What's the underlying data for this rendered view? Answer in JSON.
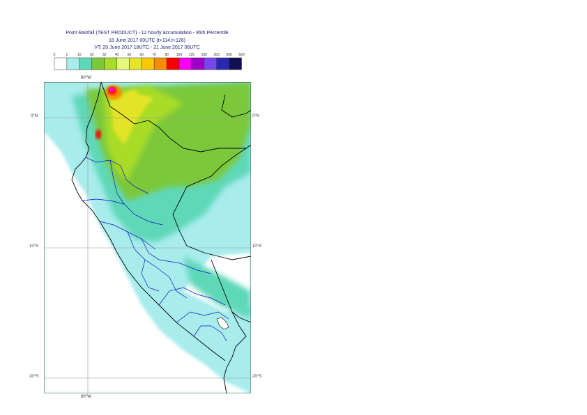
{
  "header": {
    "line1": "Point Rainfall (TEST PRODUCT) - 12 hourly accumulation - 95th Percentile",
    "line2": "16 June 2017 00UTC (t+114,t+126)",
    "line3": "VT: 20 June 2017 18UTC - 21 June 2017 06UTC"
  },
  "legend": {
    "thresholds": [
      "0",
      "1",
      "10",
      "20",
      "30",
      "40",
      "50",
      "60",
      "70",
      "80",
      "100",
      "125",
      "150",
      "200",
      "300",
      "500"
    ],
    "colors": [
      "#ffffff",
      "#a8ecec",
      "#5ed8b8",
      "#7cc83a",
      "#a8dc28",
      "#e4f87a",
      "#e4e428",
      "#f8c800",
      "#f88c00",
      "#f80000",
      "#f800f8",
      "#a000c8",
      "#7846f0",
      "#2828b4",
      "#101050"
    ]
  },
  "map": {
    "lat_labels": [
      "0°N",
      "10°S",
      "20°S"
    ],
    "lon_labels": [
      "80°W",
      "80°W"
    ]
  },
  "colors": {
    "land_boundary": "#000000",
    "province_boundary": "#1010c8",
    "coast": "#10106e",
    "grid": "#999999"
  }
}
